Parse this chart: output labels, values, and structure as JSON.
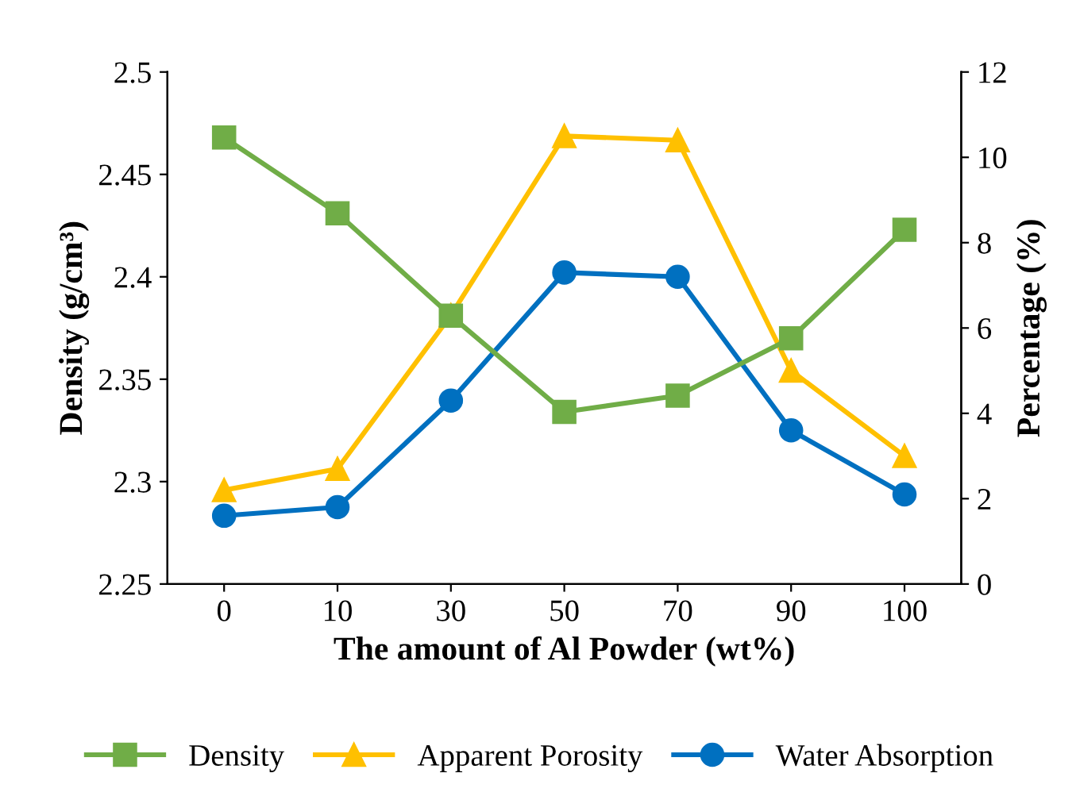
{
  "chart_data": {
    "type": "line",
    "xlabel": "The amount of Al Powder (wt%)",
    "ylabel": "Density (g/cm³)",
    "y2label": "Percentage (%)",
    "categories": [
      "0",
      "10",
      "30",
      "50",
      "70",
      "90",
      "100"
    ],
    "series": [
      {
        "name": "Density",
        "color": "#70ad47",
        "marker": "square",
        "values": [
          2.468,
          2.431,
          2.381,
          2.334,
          2.342,
          2.37,
          2.423
        ]
      },
      {
        "name": "Apparent Porosity",
        "color": "#ffc000",
        "marker": "triangle",
        "axis": "y2",
        "values": [
          2.2,
          2.7,
          6.3,
          10.5,
          10.4,
          5.0,
          3.0
        ]
      },
      {
        "name": "Water Absorption",
        "color": "#0070c0",
        "marker": "circle",
        "axis": "y2",
        "values": [
          1.6,
          1.8,
          4.3,
          7.3,
          7.2,
          3.6,
          2.1
        ]
      }
    ],
    "ylim": [
      2.25,
      2.5
    ],
    "yticks": [
      2.25,
      2.3,
      2.35,
      2.4,
      2.45,
      2.5
    ],
    "y2lim": [
      0,
      12
    ],
    "y2ticks": [
      0,
      2,
      4,
      6,
      8,
      10,
      12
    ],
    "grid": false,
    "legend": "bottom",
    "line_style": "solid"
  }
}
